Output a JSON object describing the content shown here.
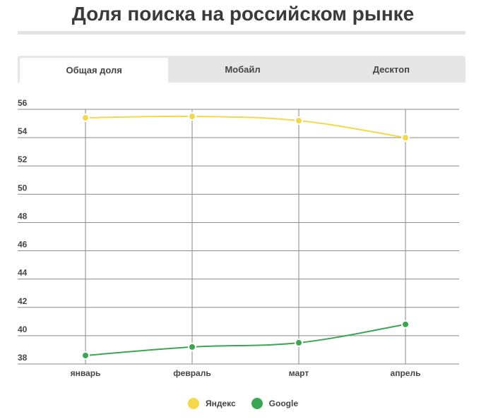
{
  "page": {
    "title": "Доля поиска на российском рынке"
  },
  "tabs": [
    {
      "label": "Общая доля",
      "active": true
    },
    {
      "label": "Мобайл",
      "active": false
    },
    {
      "label": "Десктоп",
      "active": false
    }
  ],
  "colors": {
    "yandex": "#f5d84a",
    "google": "#3aa652",
    "grid": "#8a8a8a"
  },
  "chart_data": {
    "type": "line",
    "categories": [
      "январь",
      "февраль",
      "март",
      "апрель"
    ],
    "series": [
      {
        "name": "Яндекс",
        "values": [
          55.4,
          55.5,
          55.2,
          54.0
        ]
      },
      {
        "name": "Google",
        "values": [
          38.6,
          39.2,
          39.5,
          40.8
        ]
      }
    ],
    "ylim": [
      38,
      56
    ],
    "yticks": [
      38,
      40,
      42,
      44,
      46,
      48,
      50,
      52,
      54,
      56
    ],
    "grid": true,
    "legend_position": "bottom-center"
  }
}
